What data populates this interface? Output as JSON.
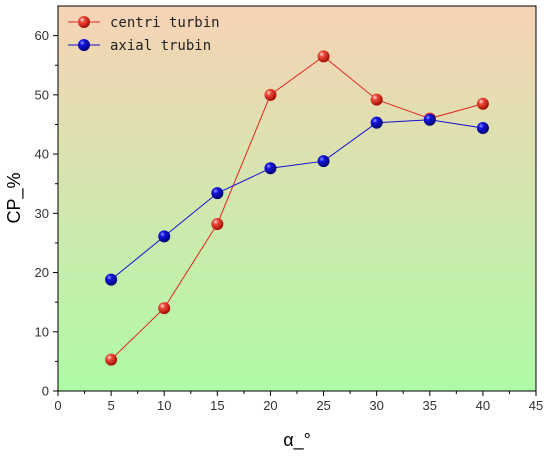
{
  "chart_data": {
    "type": "line",
    "xlabel": "α_°",
    "ylabel": "CP_%",
    "xlim": [
      0,
      45
    ],
    "ylim": [
      0,
      65
    ],
    "xticks": [
      0,
      5,
      10,
      15,
      20,
      25,
      30,
      35,
      40,
      45
    ],
    "yticks": [
      0,
      10,
      20,
      30,
      40,
      50,
      60
    ],
    "x": [
      5,
      10,
      15,
      20,
      25,
      30,
      35,
      40
    ],
    "grid": false,
    "legend_position": "top-left",
    "background_gradient": {
      "top": "#f7d3b6",
      "bottom": "#aefaa6"
    },
    "series": [
      {
        "name": "centri turbin",
        "color": "#e0281e",
        "marker": "sphere",
        "values": [
          5.3,
          14.0,
          28.2,
          50.0,
          56.5,
          49.2,
          46.0,
          48.5
        ]
      },
      {
        "name": "axial trubin",
        "color": "#1010d0",
        "marker": "sphere",
        "values": [
          18.8,
          26.1,
          33.4,
          37.6,
          38.8,
          45.3,
          45.8,
          44.4
        ]
      }
    ]
  }
}
